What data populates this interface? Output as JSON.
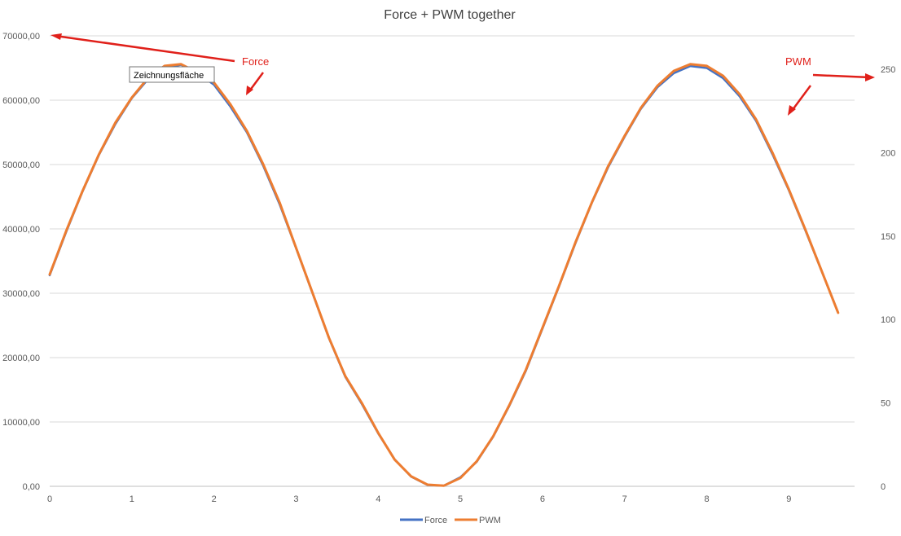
{
  "chart_data": {
    "type": "line",
    "title": "Force + PWM together",
    "xlabel": "",
    "ylabel": "",
    "y2label": "",
    "x": [
      0,
      0.2,
      0.4,
      0.6,
      0.8,
      1.0,
      1.2,
      1.4,
      1.6,
      1.8,
      2.0,
      2.2,
      2.4,
      2.6,
      2.8,
      3.0,
      3.2,
      3.4,
      3.6,
      3.8,
      4.0,
      4.2,
      4.4,
      4.6,
      4.8,
      5.0,
      5.2,
      5.4,
      5.6,
      5.8,
      6.0,
      6.2,
      6.4,
      6.6,
      6.8,
      7.0,
      7.2,
      7.4,
      7.6,
      7.8,
      8.0,
      8.2,
      8.4,
      8.6,
      8.8,
      9.0,
      9.2,
      9.4,
      9.6
    ],
    "xlim": [
      0,
      9.8
    ],
    "xticks": [
      "0",
      "1",
      "2",
      "3",
      "4",
      "5",
      "6",
      "7",
      "8",
      "9"
    ],
    "ylim": [
      0,
      70000
    ],
    "yticks": [
      "0,00",
      "10000,00",
      "20000,00",
      "30000,00",
      "40000,00",
      "50000,00",
      "60000,00",
      "70000,00"
    ],
    "y2lim": [
      0,
      270
    ],
    "y2ticks": [
      "0",
      "50",
      "100",
      "150",
      "200",
      "250"
    ],
    "grid": true,
    "legend_position": "bottom",
    "series": [
      {
        "name": "Force",
        "axis": "left",
        "color": "#4472C4",
        "values": [
          32800,
          39500,
          45800,
          51500,
          56300,
          60300,
          63300,
          65000,
          65500,
          64200,
          62400,
          59000,
          55000,
          49800,
          43800,
          37000,
          30000,
          23000,
          17000,
          12800,
          8200,
          4200,
          1500,
          200,
          100,
          1400,
          3800,
          7700,
          12600,
          18000,
          24500,
          31000,
          37700,
          44000,
          49600,
          54300,
          58700,
          62000,
          64200,
          65300,
          65000,
          63400,
          60600,
          56800,
          51600,
          46000,
          39800,
          33400,
          27000
        ]
      },
      {
        "name": "PWM",
        "axis": "right",
        "color": "#ED7D31",
        "values": [
          127,
          153,
          177,
          199,
          218,
          233,
          245,
          252,
          253,
          248,
          242,
          229,
          213,
          193,
          170,
          143,
          116,
          89,
          66,
          50,
          32,
          16,
          6,
          1,
          0.4,
          5,
          15,
          30,
          49,
          70,
          95,
          120,
          146,
          170,
          192,
          210,
          227,
          240,
          249,
          253,
          252,
          246,
          235,
          220,
          200,
          178,
          154,
          129,
          104
        ]
      }
    ],
    "annotations": [
      {
        "text": "Force",
        "points_to": "left axis top"
      },
      {
        "text": "PWM",
        "points_to": "right axis 250"
      }
    ]
  },
  "tooltip": {
    "text": "Zeichnungsfläche"
  },
  "colors": {
    "arrow": "#e0201a",
    "grid": "#d9d9d9",
    "axis_text": "#595959"
  }
}
